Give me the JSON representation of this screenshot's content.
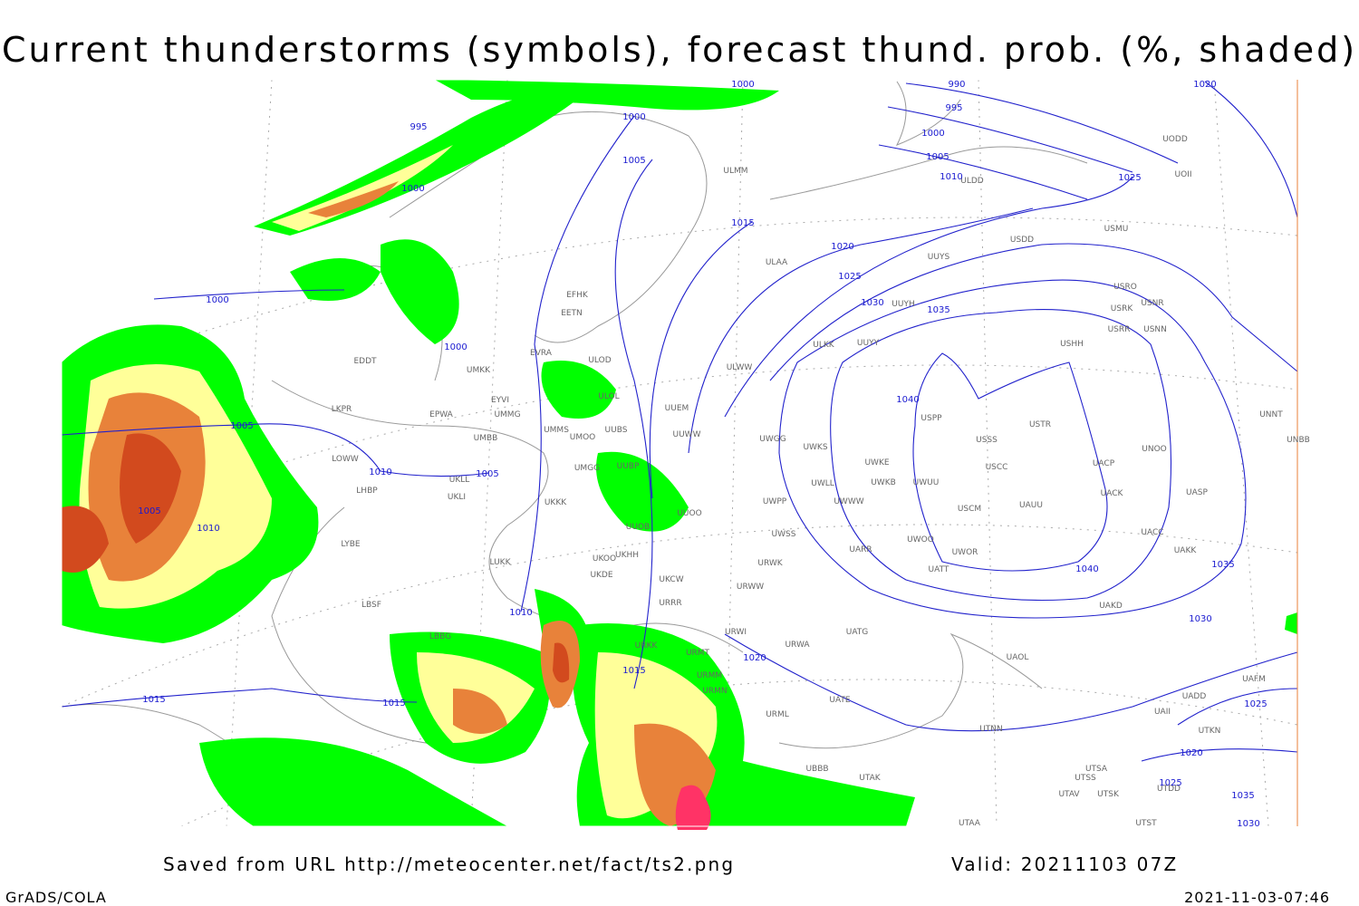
{
  "header": {
    "title": "Current thunderstorms (symbols), forecast thund. prob. (%, shaded)"
  },
  "footer": {
    "saved": "Saved from URL http://meteocenter.net/fact/ts2.png",
    "valid": "Valid: 20211103 07Z",
    "software": "GrADS/COLA",
    "timestamp": "2021-11-03-07:46"
  },
  "isobar_labels": [
    "1000",
    "995",
    "1000",
    "1005",
    "1000",
    "1015",
    "1020",
    "1025",
    "1030",
    "1035",
    "1040",
    "1040",
    "1035",
    "1030",
    "1025",
    "1020",
    "995",
    "990",
    "1000",
    "1005",
    "1010",
    "1000",
    "1000",
    "1005",
    "1010",
    "1005",
    "1005",
    "1010",
    "1010",
    "1015",
    "1020",
    "1015",
    "1015",
    "1025",
    "1020",
    "1025",
    "1035",
    "1030"
  ],
  "stations": [
    "ULMM",
    "ULDD",
    "UODD",
    "UOII",
    "USMU",
    "USDD",
    "ULAA",
    "UUYS",
    "USRO",
    "USRK",
    "USNR",
    "USRR",
    "USNN",
    "USHH",
    "UUYH",
    "ULKK",
    "UUYY",
    "ULWW",
    "EFHK",
    "EETN",
    "EVRA",
    "ULOD",
    "ULOL",
    "UMKK",
    "EDDT",
    "EYVI",
    "EPWA",
    "UMMG",
    "LKPR",
    "UMBB",
    "UMMS",
    "UMOO",
    "UUBS",
    "UUEM",
    "UUWW",
    "UWGG",
    "UWKS",
    "UWKE",
    "UWKB",
    "UWUU",
    "USPP",
    "USTR",
    "USSS",
    "USCC",
    "USCM",
    "UAUU",
    "UACP",
    "UNOO",
    "UACK",
    "UASP",
    "UNNT",
    "UNBB",
    "LOWW",
    "UKLL",
    "UKLI",
    "LHBP",
    "UMGG",
    "UUBP",
    "UKKK",
    "UWLL",
    "UWWW",
    "UWPP",
    "UUOO",
    "UUOB",
    "UWSS",
    "UARR",
    "UWOO",
    "UWOR",
    "UATT",
    "UACC",
    "UAKK",
    "LYBE",
    "LUKK",
    "UKHH",
    "UKOO",
    "UKDE",
    "UKCW",
    "URWK",
    "URWW",
    "LBSF",
    "URRR",
    "UAKD",
    "LBBG",
    "URWI",
    "UATG",
    "URWA",
    "URKK",
    "URMT",
    "UAOL",
    "URMM",
    "URMN",
    "UATE",
    "UADD",
    "UAFM",
    "UAII",
    "URML",
    "UTNN",
    "UTKN",
    "UBBB",
    "UTAK",
    "UTSA",
    "UTSS",
    "UTAV",
    "UTSK",
    "UTDD",
    "UTST",
    "UTAA"
  ]
}
